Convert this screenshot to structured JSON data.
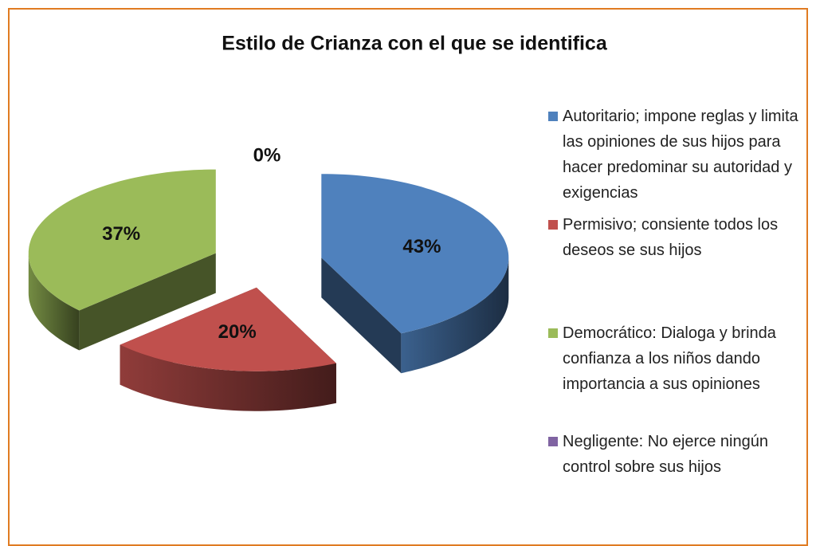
{
  "chart_data": {
    "type": "pie",
    "title": "Estilo de Crianza con el que se identifica",
    "categories": [
      "Autoritario; impone reglas y limita las opiniones de sus hijos para hacer predominar su autoridad y exigencias",
      "Permisivo; consiente todos los deseos se sus hijos",
      "Democrático: Dialoga y brinda confianza a los niños dando importancia a sus opiniones",
      "Negligente: No ejerce ningún control sobre sus hijos"
    ],
    "values": [
      43,
      20,
      37,
      0
    ],
    "value_labels": [
      "43%",
      "20%",
      "37%",
      "0%"
    ],
    "colors": [
      "#4f81bd",
      "#c0504d",
      "#9bbb59",
      "#8064a2"
    ],
    "legend": "right"
  }
}
